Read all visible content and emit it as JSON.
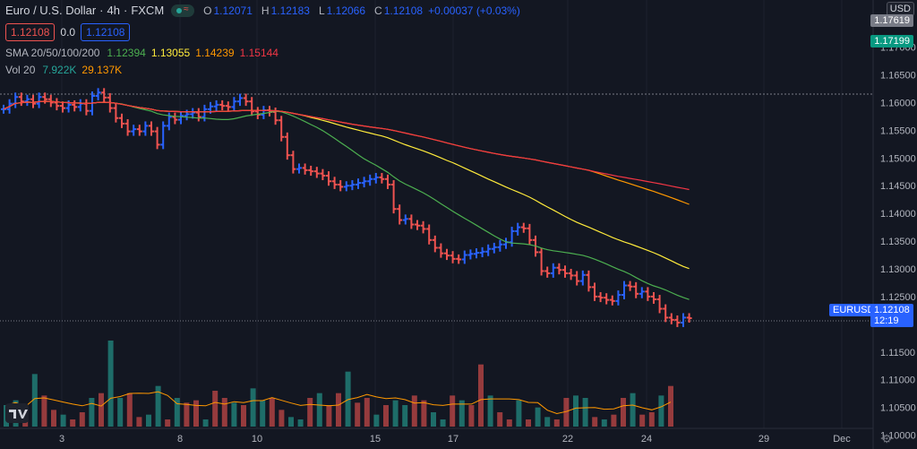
{
  "header": {
    "title": "Euro / U.S. Dollar",
    "interval": "4h",
    "exchange": "FXCM",
    "ohlc": {
      "o_label": "O",
      "o": "1.12071",
      "h_label": "H",
      "h": "1.12183",
      "l_label": "L",
      "l": "1.12066",
      "c_label": "C",
      "c": "1.12108",
      "change": "+0.00037 (+0.03%)"
    },
    "sell_price": "1.12108",
    "spread": "0.0",
    "buy_price": "1.12108"
  },
  "indicators": {
    "sma": {
      "name": "SMA 20/50/100/200",
      "v20": "1.12394",
      "v50": "1.13055",
      "v100": "1.14239",
      "v200": "1.15144"
    },
    "volume": {
      "name": "Vol 20",
      "v1": "7.922K",
      "v2": "29.137K"
    }
  },
  "price_axis": {
    "currency": "USD",
    "ticks": [
      "1.17000",
      "1.16500",
      "1.16000",
      "1.15500",
      "1.15000",
      "1.14500",
      "1.14000",
      "1.13500",
      "1.13000",
      "1.12500",
      "1.11500",
      "1.11000",
      "1.10500",
      "1.10000"
    ],
    "tag_top": "1.17619",
    "tag_hline": "1.17199",
    "symbol_tag": "EURUSD",
    "last_price": "1.12108",
    "countdown": "12:19"
  },
  "time_axis": {
    "labels": [
      "3",
      "8",
      "10",
      "15",
      "17",
      "22",
      "24",
      "29",
      "Dec"
    ]
  },
  "colors": {
    "bg": "#131722",
    "up": "#2962ff",
    "down": "#ef5350",
    "vol_up": "#26a69a",
    "vol_down": "#ef5350",
    "sma20": "#4caf50",
    "sma50": "#ffeb3b",
    "sma100": "#ff9800",
    "sma200": "#f23645"
  },
  "chart_data": {
    "type": "ohlc",
    "price_range": [
      1.0975,
      1.1785
    ],
    "candles_close": [
      1.1588,
      1.1598,
      1.161,
      1.1602,
      1.1606,
      1.1598,
      1.161,
      1.1606,
      1.16,
      1.1594,
      1.159,
      1.1596,
      1.1592,
      1.1598,
      1.1585,
      1.1612,
      1.1618,
      1.1609,
      1.159,
      1.1572,
      1.1562,
      1.1548,
      1.1552,
      1.1548,
      1.1558,
      1.1548,
      1.1524,
      1.1558,
      1.1574,
      1.1569,
      1.1576,
      1.1579,
      1.1582,
      1.1574,
      1.1588,
      1.1593,
      1.1596,
      1.1594,
      1.1592,
      1.1602,
      1.1608,
      1.1602,
      1.1584,
      1.1578,
      1.1586,
      1.1583,
      1.1568,
      1.1538,
      1.1505,
      1.148,
      1.1482,
      1.1478,
      1.1476,
      1.1472,
      1.1468,
      1.1458,
      1.1452,
      1.1448,
      1.145,
      1.1452,
      1.1455,
      1.1458,
      1.1462,
      1.1465,
      1.1462,
      1.1452,
      1.1408,
      1.1388,
      1.139,
      1.138,
      1.1378,
      1.1372,
      1.1352,
      1.1338,
      1.1328,
      1.1324,
      1.1318,
      1.1317,
      1.1325,
      1.1327,
      1.1329,
      1.1331,
      1.1336,
      1.1339,
      1.1344,
      1.1348,
      1.1368,
      1.1375,
      1.1373,
      1.1352,
      1.133,
      1.1296,
      1.1292,
      1.1302,
      1.1298,
      1.1292,
      1.1288,
      1.1278,
      1.1289,
      1.1267,
      1.125,
      1.1248,
      1.1244,
      1.1242,
      1.1253,
      1.127,
      1.1268,
      1.1255,
      1.1259,
      1.125,
      1.1245,
      1.1228,
      1.1212,
      1.1208,
      1.1203,
      1.1212,
      1.1211
    ],
    "volume": [
      [
        2,
        9000
      ],
      [
        4,
        11000
      ],
      [
        6,
        5000
      ],
      [
        8,
        22000
      ],
      [
        10,
        13000
      ],
      [
        12,
        7000
      ],
      [
        14,
        5000
      ],
      [
        16,
        3000
      ],
      [
        18,
        6000
      ],
      [
        20,
        12000
      ],
      [
        22,
        14000
      ],
      [
        24,
        36000
      ],
      [
        26,
        12000
      ],
      [
        28,
        14000
      ],
      [
        30,
        4000
      ],
      [
        32,
        5000
      ],
      [
        34,
        17000
      ],
      [
        36,
        3000
      ],
      [
        38,
        12000
      ],
      [
        40,
        10000
      ],
      [
        42,
        11000
      ],
      [
        44,
        3000
      ],
      [
        46,
        15000
      ],
      [
        48,
        12000
      ],
      [
        50,
        10000
      ],
      [
        52,
        9000
      ],
      [
        54,
        16000
      ],
      [
        56,
        11000
      ],
      [
        58,
        12000
      ],
      [
        60,
        7000
      ],
      [
        62,
        4000
      ],
      [
        64,
        3000
      ],
      [
        66,
        12000
      ],
      [
        68,
        14000
      ],
      [
        70,
        9000
      ],
      [
        72,
        14000
      ],
      [
        74,
        23000
      ],
      [
        76,
        10000
      ],
      [
        78,
        12000
      ],
      [
        80,
        5000
      ],
      [
        82,
        9000
      ],
      [
        84,
        11000
      ],
      [
        86,
        9000
      ],
      [
        88,
        13000
      ],
      [
        90,
        11000
      ],
      [
        92,
        6000
      ],
      [
        94,
        3000
      ],
      [
        96,
        13000
      ],
      [
        98,
        11000
      ],
      [
        100,
        9000
      ],
      [
        102,
        26000
      ],
      [
        104,
        13000
      ],
      [
        106,
        6000
      ],
      [
        108,
        3000
      ],
      [
        110,
        11000
      ],
      [
        112,
        3000
      ],
      [
        114,
        8000
      ],
      [
        116,
        4000
      ],
      [
        118,
        3000
      ],
      [
        120,
        12000
      ],
      [
        122,
        13000
      ],
      [
        124,
        12000
      ],
      [
        126,
        4000
      ],
      [
        128,
        3000
      ],
      [
        130,
        5000
      ],
      [
        132,
        12000
      ],
      [
        134,
        14000
      ],
      [
        136,
        5000
      ],
      [
        138,
        6000
      ],
      [
        140,
        13000
      ],
      [
        142,
        17000
      ]
    ],
    "volume_scale_max": 45000
  }
}
